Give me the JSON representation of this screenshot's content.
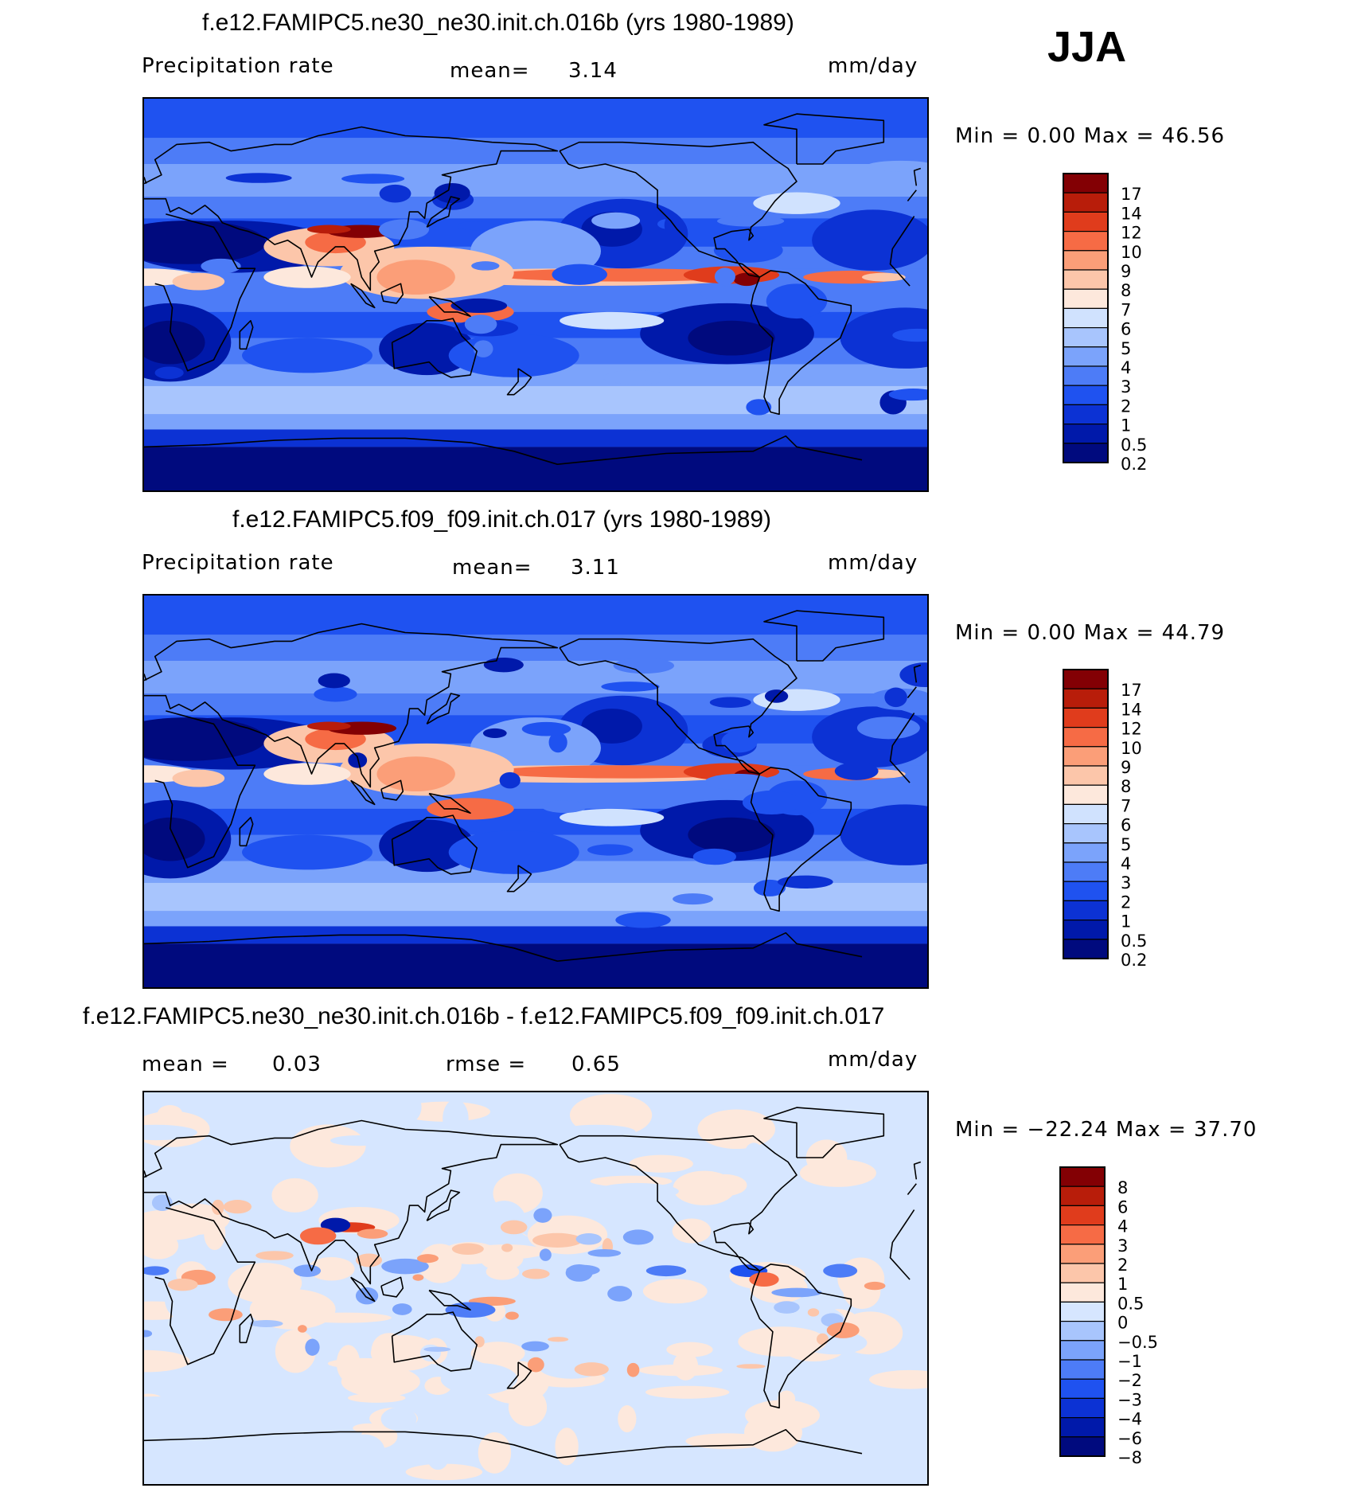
{
  "season": "JJA",
  "colors": {
    "abs_levels": [
      "#000a7e",
      "#0019aa",
      "#0c32d4",
      "#1f52f0",
      "#4d7cf7",
      "#7ba3fb",
      "#a8c5fd",
      "#d0e2fe",
      "#fde8dc",
      "#fcc6aa",
      "#fb9e78",
      "#f66b45",
      "#e03c1c",
      "#b81d0a",
      "#830004"
    ],
    "diff_levels": [
      "#000a7e",
      "#0019aa",
      "#0c32d4",
      "#1f52f0",
      "#4d7cf7",
      "#7ba3fb",
      "#a8c5fd",
      "#d6e6ff",
      "#fde8dc",
      "#fcc6aa",
      "#fb9e78",
      "#f66b45",
      "#e03c1c",
      "#b81d0a",
      "#830004"
    ]
  },
  "panels": [
    {
      "title": "f.e12.FAMIPC5.ne30_ne30.init.ch.016b (yrs 1980-1989)",
      "variable": "Precipitation rate",
      "mean_label": "mean=",
      "mean_value": "3.14",
      "units": "mm/day",
      "minmax": "Min =    0.00 Max =   46.56",
      "colorbar_labels": [
        "17",
        "14",
        "12",
        "10",
        "9",
        "8",
        "7",
        "6",
        "5",
        "4",
        "3",
        "2",
        "1",
        "0.5",
        "0.2"
      ]
    },
    {
      "title": "f.e12.FAMIPC5.f09_f09.init.ch.017 (yrs 1980-1989)",
      "variable": "Precipitation rate",
      "mean_label": "mean=",
      "mean_value": "3.11",
      "units": "mm/day",
      "minmax": "Min =    0.00 Max =   44.79",
      "colorbar_labels": [
        "17",
        "14",
        "12",
        "10",
        "9",
        "8",
        "7",
        "6",
        "5",
        "4",
        "3",
        "2",
        "1",
        "0.5",
        "0.2"
      ]
    },
    {
      "title": "f.e12.FAMIPC5.ne30_ne30.init.ch.016b - f.e12.FAMIPC5.f09_f09.init.ch.017",
      "mean_label": "mean =",
      "mean_value": "0.03",
      "rmse_label": "rmse =",
      "rmse_value": "0.65",
      "units": "mm/day",
      "minmax": "Min = −22.24 Max =   37.70",
      "colorbar_labels": [
        "8",
        "6",
        "4",
        "3",
        "2",
        "1",
        "0.5",
        "0",
        "−0.5",
        "−1",
        "−2",
        "−3",
        "−4",
        "−6",
        "−8"
      ]
    }
  ],
  "chart_data": [
    {
      "type": "heatmap",
      "title": "f.e12.FAMIPC5.ne30_ne30.init.ch.016b (yrs 1980-1989)",
      "variable": "Precipitation rate",
      "units": "mm/day",
      "mean": 3.14,
      "min": 0.0,
      "max": 46.56,
      "contour_levels": [
        0.2,
        0.5,
        1,
        2,
        3,
        4,
        5,
        6,
        7,
        8,
        9,
        10,
        12,
        14,
        17
      ]
    },
    {
      "type": "heatmap",
      "title": "f.e12.FAMIPC5.f09_f09.init.ch.017 (yrs 1980-1989)",
      "variable": "Precipitation rate",
      "units": "mm/day",
      "mean": 3.11,
      "min": 0.0,
      "max": 44.79,
      "contour_levels": [
        0.2,
        0.5,
        1,
        2,
        3,
        4,
        5,
        6,
        7,
        8,
        9,
        10,
        12,
        14,
        17
      ]
    },
    {
      "type": "heatmap",
      "title": "f.e12.FAMIPC5.ne30_ne30.init.ch.016b - f.e12.FAMIPC5.f09_f09.init.ch.017",
      "units": "mm/day",
      "mean": 0.03,
      "rmse": 0.65,
      "min": -22.24,
      "max": 37.7,
      "contour_levels": [
        -8,
        -6,
        -4,
        -3,
        -2,
        -1,
        -0.5,
        0,
        0.5,
        1,
        2,
        3,
        4,
        6,
        8
      ]
    }
  ]
}
